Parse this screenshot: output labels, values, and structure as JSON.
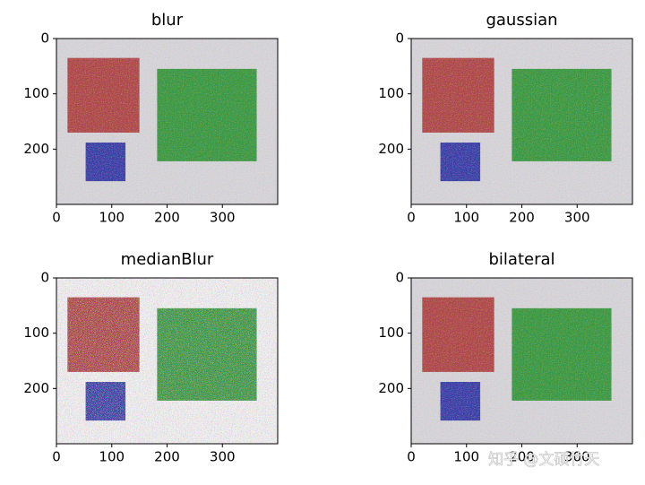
{
  "chart_data": [
    {
      "type": "image",
      "title": "blur",
      "xlim": [
        0,
        400
      ],
      "ylim": [
        300,
        0
      ],
      "xticks": [
        0,
        100,
        200,
        300
      ],
      "yticks": [
        0,
        100,
        200
      ]
    },
    {
      "type": "image",
      "title": "gaussian",
      "xlim": [
        0,
        400
      ],
      "ylim": [
        300,
        0
      ],
      "xticks": [
        0,
        100,
        200,
        300
      ],
      "yticks": [
        0,
        100,
        200
      ]
    },
    {
      "type": "image",
      "title": "medianBlur",
      "xlim": [
        0,
        400
      ],
      "ylim": [
        300,
        0
      ],
      "xticks": [
        0,
        100,
        200,
        300
      ],
      "yticks": [
        0,
        100,
        200
      ]
    },
    {
      "type": "image",
      "title": "bilateral",
      "xlim": [
        0,
        400
      ],
      "ylim": [
        300,
        0
      ],
      "xticks": [
        0,
        100,
        200,
        300
      ],
      "yticks": [
        0,
        100,
        200
      ]
    }
  ],
  "watermark": "知乎 @文硕竹天"
}
